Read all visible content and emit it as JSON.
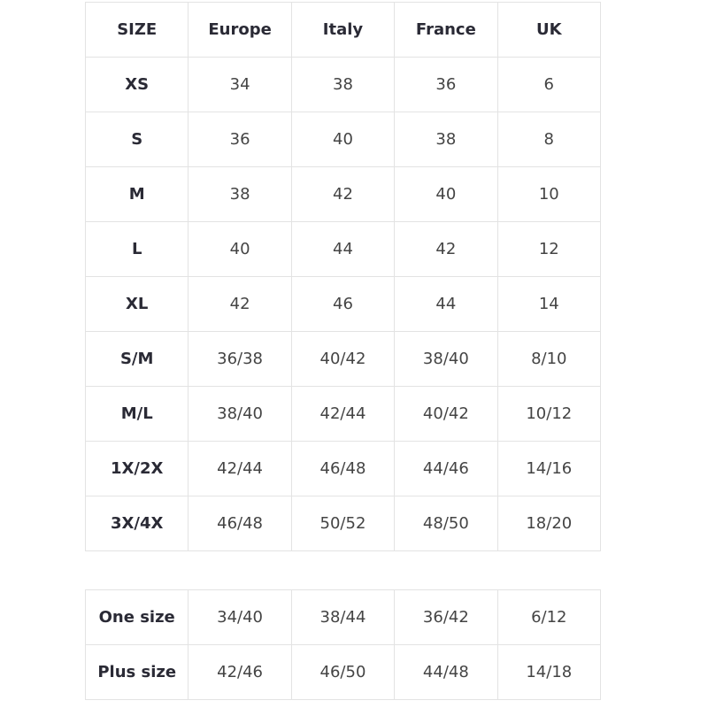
{
  "headers": [
    "SIZE",
    "Europe",
    "Italy",
    "France",
    "UK"
  ],
  "rows": [
    [
      "XS",
      "34",
      "38",
      "36",
      "6"
    ],
    [
      "S",
      "36",
      "40",
      "38",
      "8"
    ],
    [
      "M",
      "38",
      "42",
      "40",
      "10"
    ],
    [
      "L",
      "40",
      "44",
      "42",
      "12"
    ],
    [
      "XL",
      "42",
      "46",
      "44",
      "14"
    ],
    [
      "S/M",
      "36/38",
      "40/42",
      "38/40",
      "8/10"
    ],
    [
      "M/L",
      "38/40",
      "42/44",
      "40/42",
      "10/12"
    ],
    [
      "1X/2X",
      "42/44",
      "46/48",
      "44/46",
      "14/16"
    ],
    [
      "3X/4X",
      "46/48",
      "50/52",
      "48/50",
      "18/20"
    ]
  ],
  "extra_rows": [
    [
      "One size",
      "34/40",
      "38/44",
      "36/42",
      "6/12"
    ],
    [
      "Plus size",
      "42/46",
      "46/50",
      "44/48",
      "14/18"
    ]
  ]
}
